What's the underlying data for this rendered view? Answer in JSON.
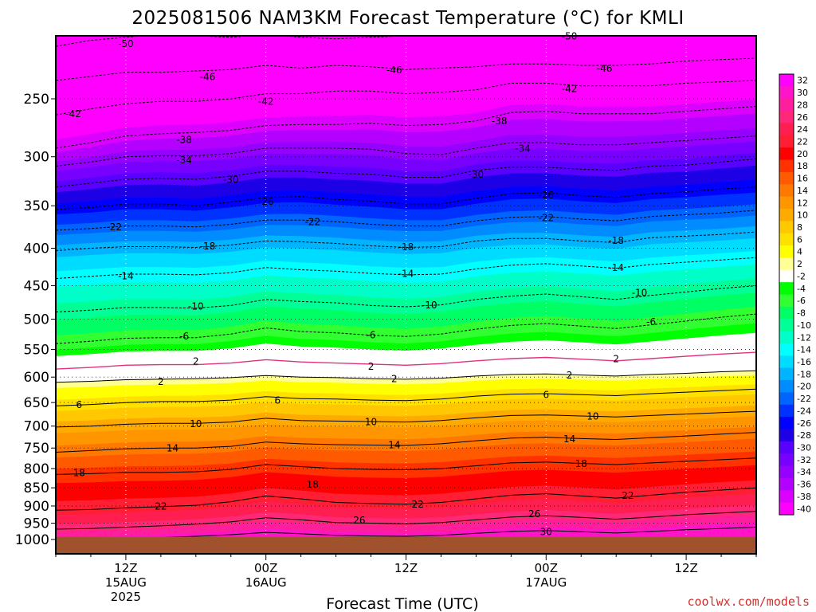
{
  "title": "2025081506 NAM3KM Forecast Temperature (°C) for KMLI",
  "credit": "coolwx.com/models",
  "colors": {
    "ground": "#a0522d",
    "freezing_line": "#e0307e"
  },
  "chart_data": {
    "type": "heatmap",
    "title": "2025081506 NAM3KM Forecast Temperature (°C) for KMLI",
    "xlabel": "Forecast Time (UTC)",
    "ylabel": "",
    "x_hours": [
      0,
      3,
      6,
      9,
      12,
      15,
      18,
      21,
      24,
      27,
      30,
      33,
      36,
      39,
      42,
      45,
      48,
      51,
      54,
      57,
      60
    ],
    "xlim": [
      0,
      60
    ],
    "x_ticks": [
      {
        "hour": 6,
        "lines": [
          "12Z",
          "15AUG",
          "2025"
        ]
      },
      {
        "hour": 18,
        "lines": [
          "00Z",
          "16AUG"
        ]
      },
      {
        "hour": 30,
        "lines": [
          "12Z"
        ]
      },
      {
        "hour": 42,
        "lines": [
          "00Z",
          "17AUG"
        ]
      },
      {
        "hour": 54,
        "lines": [
          "12Z"
        ]
      }
    ],
    "y_levels_hpa": [
      250,
      300,
      350,
      400,
      450,
      500,
      550,
      600,
      650,
      700,
      750,
      800,
      850,
      900,
      950,
      1000
    ],
    "ylim": [
      1000,
      200
    ],
    "y_scale": "log-pressure",
    "ground_level_hpa": 992,
    "grid": true,
    "colorbar": {
      "placement": "right",
      "labels": [
        "32",
        "30",
        "28",
        "26",
        "24",
        "22",
        "20",
        "18",
        "16",
        "14",
        "12",
        "10",
        "8",
        "6",
        "4",
        "2",
        "-2",
        "-4",
        "-6",
        "-8",
        "-10",
        "-12",
        "-14",
        "-16",
        "-18",
        "-20",
        "-22",
        "-24",
        "-26",
        "-28",
        "-30",
        "-32",
        "-34",
        "-36",
        "-38",
        "-40"
      ],
      "colors": [
        "#ff00ff",
        "#ff14c8",
        "#ff1e9b",
        "#ff2878",
        "#ff1e50",
        "#ff1e32",
        "#ff0000",
        "#ff3200",
        "#ff5a00",
        "#ff7800",
        "#ff9600",
        "#ffaa00",
        "#ffc800",
        "#ffe100",
        "#ffff00",
        "#ffff96",
        "#ffffff",
        "#00ff00",
        "#32ff32",
        "#00ff64",
        "#00ff96",
        "#00ffc8",
        "#00ffff",
        "#00dcff",
        "#00b4ff",
        "#008cff",
        "#0064ff",
        "#0032ff",
        "#0000ff",
        "#1e00e6",
        "#5a00ff",
        "#7800ff",
        "#9600ff",
        "#b400ff",
        "#dc00ff",
        "#ff00ff"
      ]
    },
    "isotherms": [
      {
        "value": -50,
        "levels": [
          212,
          208,
          206,
          204,
          205,
          206,
          204,
          206,
          207,
          206,
          205,
          203,
          202,
          201,
          202,
          204,
          203,
          202,
          201,
          200,
          199
        ]
      },
      {
        "value": -46,
        "levels": [
          236,
          233,
          230,
          230,
          229,
          228,
          225,
          227,
          225,
          226,
          228,
          227,
          226,
          224,
          224,
          225,
          225,
          224,
          222,
          221,
          220
        ]
      },
      {
        "value": -42,
        "levels": [
          263,
          258,
          254,
          252,
          252,
          250,
          246,
          246,
          244,
          244,
          246,
          245,
          243,
          238,
          238,
          240,
          240,
          240,
          238,
          237,
          236
        ]
      },
      {
        "value": -38,
        "levels": [
          292,
          287,
          281,
          279,
          278,
          276,
          272,
          271,
          271,
          270,
          272,
          271,
          268,
          261,
          260,
          262,
          262,
          262,
          260,
          258,
          256
        ]
      },
      {
        "value": -34,
        "levels": [
          309,
          305,
          300,
          299,
          299,
          297,
          292,
          292,
          292,
          293,
          297,
          298,
          292,
          287,
          287,
          289,
          289,
          287,
          285,
          283,
          281
        ]
      },
      {
        "value": -30,
        "levels": [
          330,
          326,
          322,
          321,
          322,
          319,
          314,
          314,
          316,
          317,
          320,
          320,
          313,
          310,
          310,
          312,
          313,
          309,
          308,
          305,
          302
        ]
      },
      {
        "value": -26,
        "levels": [
          354,
          352,
          348,
          348,
          350,
          346,
          341,
          340,
          343,
          345,
          348,
          348,
          342,
          337,
          336,
          339,
          341,
          337,
          335,
          332,
          330
        ]
      },
      {
        "value": -22,
        "levels": [
          378,
          376,
          373,
          373,
          374,
          371,
          366,
          366,
          368,
          371,
          373,
          373,
          367,
          363,
          362,
          365,
          367,
          362,
          360,
          358,
          355
        ]
      },
      {
        "value": -18,
        "levels": [
          403,
          400,
          398,
          398,
          399,
          396,
          391,
          392,
          394,
          397,
          399,
          398,
          391,
          388,
          388,
          391,
          393,
          387,
          385,
          383,
          380
        ]
      },
      {
        "value": -14,
        "levels": [
          440,
          437,
          434,
          434,
          435,
          432,
          425,
          428,
          430,
          433,
          435,
          434,
          427,
          422,
          420,
          423,
          426,
          421,
          418,
          415,
          412
        ]
      },
      {
        "value": -10,
        "levels": [
          489,
          486,
          482,
          482,
          483,
          479,
          470,
          473,
          475,
          479,
          481,
          478,
          470,
          465,
          462,
          466,
          470,
          464,
          459,
          454,
          450
        ]
      },
      {
        "value": -6,
        "levels": [
          540,
          536,
          531,
          530,
          530,
          524,
          514,
          520,
          522,
          526,
          528,
          524,
          516,
          510,
          507,
          511,
          515,
          509,
          503,
          497,
          492
        ]
      },
      {
        "value": 2,
        "levels": [
          610,
          608,
          605,
          604,
          603,
          601,
          597,
          600,
          601,
          603,
          604,
          602,
          598,
          595,
          594,
          596,
          598,
          595,
          593,
          590,
          588
        ]
      },
      {
        "value": 6,
        "levels": [
          657,
          654,
          650,
          648,
          648,
          645,
          638,
          642,
          643,
          645,
          646,
          643,
          637,
          633,
          632,
          634,
          636,
          632,
          629,
          626,
          623
        ]
      },
      {
        "value": 10,
        "levels": [
          702,
          700,
          696,
          694,
          694,
          691,
          683,
          688,
          689,
          690,
          691,
          688,
          682,
          677,
          676,
          678,
          680,
          677,
          674,
          671,
          668
        ]
      },
      {
        "value": 14,
        "levels": [
          760,
          756,
          752,
          750,
          750,
          746,
          736,
          740,
          742,
          743,
          744,
          740,
          733,
          727,
          725,
          728,
          730,
          726,
          722,
          718,
          714
        ]
      },
      {
        "value": 18,
        "levels": [
          815,
          813,
          810,
          810,
          808,
          802,
          790,
          795,
          800,
          802,
          803,
          800,
          793,
          786,
          784,
          787,
          790,
          786,
          782,
          778,
          774
        ]
      },
      {
        "value": 22,
        "levels": [
          912,
          910,
          905,
          902,
          898,
          888,
          872,
          880,
          890,
          893,
          895,
          890,
          880,
          870,
          866,
          872,
          878,
          870,
          862,
          856,
          850
        ]
      },
      {
        "value": 26,
        "levels": [
          968,
          966,
          962,
          958,
          953,
          946,
          934,
          940,
          948,
          950,
          952,
          948,
          940,
          932,
          928,
          933,
          938,
          932,
          925,
          920,
          915
        ]
      },
      {
        "value": 30,
        "levels": [
          1000,
          1000,
          998,
          994,
          990,
          985,
          978,
          982,
          987,
          989,
          990,
          987,
          981,
          975,
          972,
          976,
          980,
          975,
          970,
          966,
          962
        ]
      }
    ],
    "freezing_level": {
      "value": 0,
      "levels": [
        585,
        582,
        578,
        577,
        577,
        574,
        568,
        572,
        574,
        576,
        578,
        575,
        570,
        566,
        564,
        567,
        570,
        566,
        562,
        558,
        555
      ]
    },
    "contour_labels": [
      {
        "text": "-50",
        "hour": 6,
        "level": 210
      },
      {
        "text": "-50",
        "hour": 44,
        "level": 205
      },
      {
        "text": "-46",
        "hour": 13,
        "level": 233
      },
      {
        "text": "-46",
        "hour": 29,
        "level": 228
      },
      {
        "text": "-46",
        "hour": 47,
        "level": 227
      },
      {
        "text": "-42",
        "hour": 1.5,
        "level": 262
      },
      {
        "text": "-42",
        "hour": 18,
        "level": 252
      },
      {
        "text": "-42",
        "hour": 44,
        "level": 242
      },
      {
        "text": "-38",
        "hour": 11,
        "level": 284
      },
      {
        "text": "-38",
        "hour": 38,
        "level": 268
      },
      {
        "text": "-34",
        "hour": 11,
        "level": 303
      },
      {
        "text": "-34",
        "hour": 40,
        "level": 292
      },
      {
        "text": "-30",
        "hour": 15,
        "level": 322
      },
      {
        "text": "-30",
        "hour": 36,
        "level": 317
      },
      {
        "text": "-26",
        "hour": 18,
        "level": 345
      },
      {
        "text": "-26",
        "hour": 42,
        "level": 338
      },
      {
        "text": "-22",
        "hour": 5,
        "level": 374
      },
      {
        "text": "-22",
        "hour": 22,
        "level": 368
      },
      {
        "text": "-22",
        "hour": 42,
        "level": 363
      },
      {
        "text": "-18",
        "hour": 13,
        "level": 397
      },
      {
        "text": "-18",
        "hour": 30,
        "level": 398
      },
      {
        "text": "-18",
        "hour": 48,
        "level": 390
      },
      {
        "text": "-14",
        "hour": 6,
        "level": 436
      },
      {
        "text": "-14",
        "hour": 30,
        "level": 433
      },
      {
        "text": "-14",
        "hour": 48,
        "level": 425
      },
      {
        "text": "-10",
        "hour": 12,
        "level": 480
      },
      {
        "text": "-10",
        "hour": 32,
        "level": 478
      },
      {
        "text": "-10",
        "hour": 50,
        "level": 460
      },
      {
        "text": "-6",
        "hour": 11,
        "level": 527
      },
      {
        "text": "-6",
        "hour": 27,
        "level": 525
      },
      {
        "text": "-6",
        "hour": 51,
        "level": 504
      },
      {
        "text": "2",
        "hour": 12,
        "level": 570
      },
      {
        "text": "2",
        "hour": 27,
        "level": 580
      },
      {
        "text": "2",
        "hour": 48,
        "level": 566
      },
      {
        "text": "2",
        "hour": 9,
        "level": 608
      },
      {
        "text": "2",
        "hour": 29,
        "level": 603
      },
      {
        "text": "2",
        "hour": 44,
        "level": 596
      },
      {
        "text": "6",
        "hour": 2,
        "level": 654
      },
      {
        "text": "6",
        "hour": 19,
        "level": 645
      },
      {
        "text": "6",
        "hour": 42,
        "level": 634
      },
      {
        "text": "10",
        "hour": 12,
        "level": 694
      },
      {
        "text": "10",
        "hour": 27,
        "level": 690
      },
      {
        "text": "10",
        "hour": 46,
        "level": 678
      },
      {
        "text": "14",
        "hour": 10,
        "level": 750
      },
      {
        "text": "14",
        "hour": 29,
        "level": 742
      },
      {
        "text": "14",
        "hour": 44,
        "level": 728
      },
      {
        "text": "18",
        "hour": 2,
        "level": 810
      },
      {
        "text": "18",
        "hour": 22,
        "level": 840
      },
      {
        "text": "18",
        "hour": 45,
        "level": 787
      },
      {
        "text": "22",
        "hour": 9,
        "level": 900
      },
      {
        "text": "22",
        "hour": 31,
        "level": 895
      },
      {
        "text": "22",
        "hour": 49,
        "level": 870
      },
      {
        "text": "26",
        "hour": 26,
        "level": 940
      },
      {
        "text": "26",
        "hour": 41,
        "level": 922
      },
      {
        "text": "30",
        "hour": 42,
        "level": 975
      }
    ]
  }
}
